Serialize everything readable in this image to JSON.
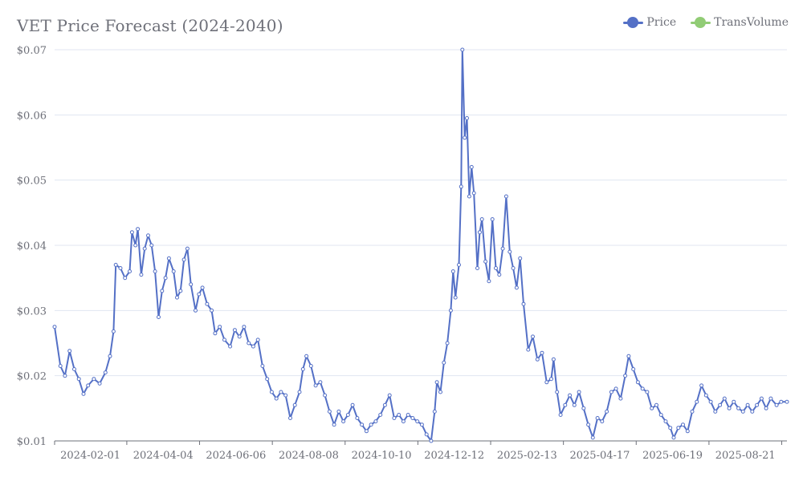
{
  "chart_data": {
    "type": "line",
    "title": "VET Price Forecast (2024-2040)",
    "ylim": [
      0.01,
      0.07
    ],
    "y_ticks": [
      "$0.01",
      "$0.02",
      "$0.03",
      "$0.04",
      "$0.05",
      "$0.06",
      "$0.07"
    ],
    "y_tick_values": [
      0.01,
      0.02,
      0.03,
      0.04,
      0.05,
      0.06,
      0.07
    ],
    "x_tick_labels": [
      "2024-02-01",
      "2024-04-04",
      "2024-06-06",
      "2024-08-08",
      "2024-10-10",
      "2024-12-12",
      "2025-02-13",
      "2025-04-17",
      "2025-06-19",
      "2025-08-21"
    ],
    "x_range": [
      "2024-01-01",
      "2025-09-26"
    ],
    "grid": "horizontal",
    "legend_position": "top-right",
    "series": [
      {
        "name": "Price",
        "color": "#5470c6",
        "points": [
          [
            "2024-01-01",
            0.0275
          ],
          [
            "2024-01-06",
            0.0215
          ],
          [
            "2024-01-10",
            0.02
          ],
          [
            "2024-01-14",
            0.0238
          ],
          [
            "2024-01-18",
            0.021
          ],
          [
            "2024-01-22",
            0.0195
          ],
          [
            "2024-01-26",
            0.0172
          ],
          [
            "2024-01-30",
            0.0185
          ],
          [
            "2024-02-04",
            0.0195
          ],
          [
            "2024-02-09",
            0.0188
          ],
          [
            "2024-02-14",
            0.0205
          ],
          [
            "2024-02-18",
            0.023
          ],
          [
            "2024-02-21",
            0.0268
          ],
          [
            "2024-02-23",
            0.037
          ],
          [
            "2024-02-27",
            0.0365
          ],
          [
            "2024-03-02",
            0.035
          ],
          [
            "2024-03-06",
            0.036
          ],
          [
            "2024-03-08",
            0.042
          ],
          [
            "2024-03-11",
            0.04
          ],
          [
            "2024-03-13",
            0.0425
          ],
          [
            "2024-03-16",
            0.0355
          ],
          [
            "2024-03-19",
            0.0395
          ],
          [
            "2024-03-22",
            0.0415
          ],
          [
            "2024-03-25",
            0.04
          ],
          [
            "2024-03-28",
            0.036
          ],
          [
            "2024-03-31",
            0.029
          ],
          [
            "2024-04-03",
            0.033
          ],
          [
            "2024-04-06",
            0.035
          ],
          [
            "2024-04-09",
            0.038
          ],
          [
            "2024-04-13",
            0.036
          ],
          [
            "2024-04-16",
            0.032
          ],
          [
            "2024-04-19",
            0.033
          ],
          [
            "2024-04-22",
            0.0378
          ],
          [
            "2024-04-25",
            0.0395
          ],
          [
            "2024-04-28",
            0.034
          ],
          [
            "2024-05-02",
            0.03
          ],
          [
            "2024-05-05",
            0.0325
          ],
          [
            "2024-05-08",
            0.0335
          ],
          [
            "2024-05-12",
            0.031
          ],
          [
            "2024-05-16",
            0.03
          ],
          [
            "2024-05-19",
            0.0265
          ],
          [
            "2024-05-23",
            0.0275
          ],
          [
            "2024-05-27",
            0.0255
          ],
          [
            "2024-06-01",
            0.0245
          ],
          [
            "2024-06-05",
            0.027
          ],
          [
            "2024-06-09",
            0.026
          ],
          [
            "2024-06-13",
            0.0275
          ],
          [
            "2024-06-17",
            0.025
          ],
          [
            "2024-06-21",
            0.0245
          ],
          [
            "2024-06-25",
            0.0255
          ],
          [
            "2024-06-29",
            0.0215
          ],
          [
            "2024-07-03",
            0.0195
          ],
          [
            "2024-07-07",
            0.0175
          ],
          [
            "2024-07-11",
            0.0165
          ],
          [
            "2024-07-15",
            0.0175
          ],
          [
            "2024-07-19",
            0.017
          ],
          [
            "2024-07-23",
            0.0135
          ],
          [
            "2024-07-27",
            0.0155
          ],
          [
            "2024-07-31",
            0.0175
          ],
          [
            "2024-08-03",
            0.021
          ],
          [
            "2024-08-06",
            0.023
          ],
          [
            "2024-08-10",
            0.0215
          ],
          [
            "2024-08-14",
            0.0185
          ],
          [
            "2024-08-18",
            0.019
          ],
          [
            "2024-08-22",
            0.017
          ],
          [
            "2024-08-26",
            0.0145
          ],
          [
            "2024-08-30",
            0.0125
          ],
          [
            "2024-09-03",
            0.0145
          ],
          [
            "2024-09-07",
            0.013
          ],
          [
            "2024-09-11",
            0.014
          ],
          [
            "2024-09-15",
            0.0155
          ],
          [
            "2024-09-19",
            0.0135
          ],
          [
            "2024-09-23",
            0.0125
          ],
          [
            "2024-09-27",
            0.0115
          ],
          [
            "2024-10-01",
            0.0125
          ],
          [
            "2024-10-05",
            0.013
          ],
          [
            "2024-10-09",
            0.014
          ],
          [
            "2024-10-13",
            0.0155
          ],
          [
            "2024-10-17",
            0.017
          ],
          [
            "2024-10-21",
            0.0135
          ],
          [
            "2024-10-25",
            0.014
          ],
          [
            "2024-10-29",
            0.013
          ],
          [
            "2024-11-02",
            0.014
          ],
          [
            "2024-11-06",
            0.0135
          ],
          [
            "2024-11-10",
            0.013
          ],
          [
            "2024-11-14",
            0.0125
          ],
          [
            "2024-11-18",
            0.011
          ],
          [
            "2024-11-22",
            0.01
          ],
          [
            "2024-11-25",
            0.0145
          ],
          [
            "2024-11-27",
            0.019
          ],
          [
            "2024-11-30",
            0.0175
          ],
          [
            "2024-12-03",
            0.022
          ],
          [
            "2024-12-06",
            0.025
          ],
          [
            "2024-12-09",
            0.03
          ],
          [
            "2024-12-11",
            0.036
          ],
          [
            "2024-12-13",
            0.032
          ],
          [
            "2024-12-16",
            0.037
          ],
          [
            "2024-12-18",
            0.049
          ],
          [
            "2024-12-19",
            0.07
          ],
          [
            "2024-12-21",
            0.0565
          ],
          [
            "2024-12-23",
            0.0595
          ],
          [
            "2024-12-25",
            0.0475
          ],
          [
            "2024-12-27",
            0.052
          ],
          [
            "2024-12-29",
            0.048
          ],
          [
            "2025-01-01",
            0.0365
          ],
          [
            "2025-01-03",
            0.042
          ],
          [
            "2025-01-05",
            0.044
          ],
          [
            "2025-01-08",
            0.0375
          ],
          [
            "2025-01-11",
            0.0345
          ],
          [
            "2025-01-14",
            0.044
          ],
          [
            "2025-01-17",
            0.0365
          ],
          [
            "2025-01-20",
            0.0355
          ],
          [
            "2025-01-23",
            0.0395
          ],
          [
            "2025-01-26",
            0.0475
          ],
          [
            "2025-01-29",
            0.039
          ],
          [
            "2025-02-01",
            0.0365
          ],
          [
            "2025-02-04",
            0.0335
          ],
          [
            "2025-02-07",
            0.038
          ],
          [
            "2025-02-10",
            0.031
          ],
          [
            "2025-02-14",
            0.024
          ],
          [
            "2025-02-18",
            0.026
          ],
          [
            "2025-02-22",
            0.0225
          ],
          [
            "2025-02-26",
            0.0235
          ],
          [
            "2025-03-02",
            0.019
          ],
          [
            "2025-03-06",
            0.0195
          ],
          [
            "2025-03-08",
            0.0225
          ],
          [
            "2025-03-11",
            0.0175
          ],
          [
            "2025-03-14",
            0.014
          ],
          [
            "2025-03-18",
            0.0155
          ],
          [
            "2025-03-22",
            0.017
          ],
          [
            "2025-03-26",
            0.0155
          ],
          [
            "2025-03-30",
            0.0175
          ],
          [
            "2025-04-03",
            0.015
          ],
          [
            "2025-04-07",
            0.0125
          ],
          [
            "2025-04-11",
            0.0105
          ],
          [
            "2025-04-15",
            0.0135
          ],
          [
            "2025-04-19",
            0.013
          ],
          [
            "2025-04-23",
            0.0145
          ],
          [
            "2025-04-27",
            0.0175
          ],
          [
            "2025-05-01",
            0.018
          ],
          [
            "2025-05-05",
            0.0165
          ],
          [
            "2025-05-09",
            0.02
          ],
          [
            "2025-05-12",
            0.023
          ],
          [
            "2025-05-16",
            0.021
          ],
          [
            "2025-05-20",
            0.019
          ],
          [
            "2025-05-24",
            0.018
          ],
          [
            "2025-05-28",
            0.0175
          ],
          [
            "2025-06-01",
            0.015
          ],
          [
            "2025-06-05",
            0.0155
          ],
          [
            "2025-06-09",
            0.014
          ],
          [
            "2025-06-13",
            0.013
          ],
          [
            "2025-06-17",
            0.012
          ],
          [
            "2025-06-20",
            0.0105
          ],
          [
            "2025-06-24",
            0.012
          ],
          [
            "2025-06-28",
            0.0125
          ],
          [
            "2025-07-02",
            0.0115
          ],
          [
            "2025-07-06",
            0.0145
          ],
          [
            "2025-07-10",
            0.016
          ],
          [
            "2025-07-14",
            0.0185
          ],
          [
            "2025-07-18",
            0.017
          ],
          [
            "2025-07-22",
            0.016
          ],
          [
            "2025-07-26",
            0.0145
          ],
          [
            "2025-07-30",
            0.0155
          ],
          [
            "2025-08-03",
            0.0165
          ],
          [
            "2025-08-07",
            0.015
          ],
          [
            "2025-08-11",
            0.016
          ],
          [
            "2025-08-15",
            0.015
          ],
          [
            "2025-08-19",
            0.0145
          ],
          [
            "2025-08-23",
            0.0155
          ],
          [
            "2025-08-27",
            0.0145
          ],
          [
            "2025-08-31",
            0.0155
          ],
          [
            "2025-09-04",
            0.0165
          ],
          [
            "2025-09-08",
            0.015
          ],
          [
            "2025-09-12",
            0.0165
          ],
          [
            "2025-09-17",
            0.0155
          ],
          [
            "2025-09-21",
            0.016
          ],
          [
            "2025-09-26",
            0.016
          ]
        ]
      },
      {
        "name": "TransVolume",
        "color": "#91cc75",
        "points": []
      }
    ]
  },
  "colors": {
    "axis": "#6e7079",
    "grid": "#e0e6f1",
    "price": "#5470c6",
    "volume": "#91cc75"
  }
}
